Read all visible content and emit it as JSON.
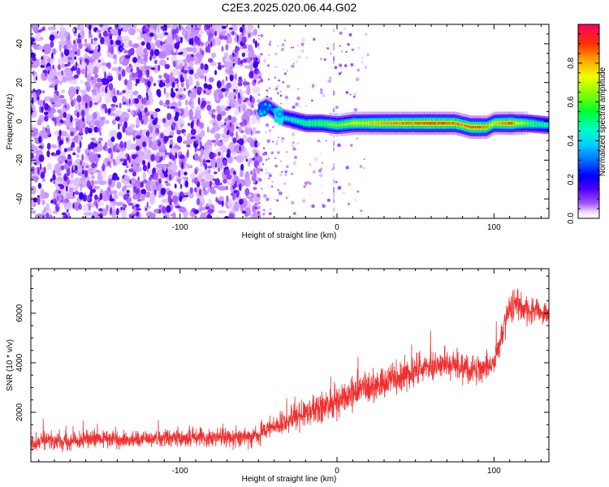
{
  "title": "C2E3.2025.020.06.44.G02",
  "chart_data": [
    {
      "type": "heatmap",
      "title": "C2E3.2025.020.06.44.G02",
      "xlabel": "Height of straight line (km)",
      "ylabel": "Frequency (Hz)",
      "xlim": [
        -195,
        135
      ],
      "ylim": [
        -50,
        50
      ],
      "xticks": [
        -100,
        0,
        100
      ],
      "xtick_labels": [
        "-100",
        "0",
        "100"
      ],
      "yticks": [
        -40,
        -20,
        0,
        20,
        40
      ],
      "ytick_labels": [
        "-40",
        "-20",
        "0",
        "20",
        "40"
      ],
      "colorbar": {
        "label": "Normalized spectral amplitude",
        "range": [
          0,
          1
        ],
        "ticks": [
          0.0,
          0.2,
          0.4,
          0.6,
          0.8
        ],
        "tick_labels": [
          "0.0",
          "0.2",
          "0.4",
          "0.6",
          "0.8"
        ],
        "colormap": [
          "#ffffff",
          "#e8d8ff",
          "#8030ff",
          "#2000ff",
          "#0080ff",
          "#00e8ff",
          "#00ff40",
          "#c0ff00",
          "#ff8000",
          "#ff0040"
        ]
      },
      "noise_region_x": [
        -195,
        -50
      ],
      "signal_track": {
        "x": [
          -50,
          -45,
          -40,
          -35,
          -30,
          -25,
          -20,
          -10,
          0,
          10,
          20,
          40,
          60,
          75,
          80,
          85,
          90,
          95,
          100,
          110,
          120,
          135
        ],
        "y": [
          6,
          8,
          5,
          2,
          1,
          0,
          -1,
          -1,
          -2,
          -1,
          -1,
          -1,
          -1,
          -1,
          -2,
          -3,
          -3,
          -3,
          -1,
          -1,
          -1,
          -2
        ],
        "peak_amplitude": [
          0.3,
          0.35,
          0.4,
          0.45,
          0.5,
          0.55,
          0.6,
          0.65,
          0.7,
          0.8,
          0.85,
          0.95,
          0.98,
          0.95,
          0.9,
          0.95,
          0.98,
          0.9,
          0.85,
          0.98,
          0.7,
          0.5
        ]
      },
      "grid": false
    },
    {
      "type": "line",
      "xlabel": "Height of straight line (km)",
      "ylabel": "SNR (10 * v/v)",
      "xlim": [
        -195,
        135
      ],
      "ylim": [
        0,
        7800
      ],
      "xticks": [
        -100,
        0,
        100
      ],
      "xtick_labels": [
        "-100",
        "0",
        "100"
      ],
      "yticks": [
        2000,
        4000,
        6000
      ],
      "ytick_labels": [
        "2000",
        "4000",
        "6000"
      ],
      "color": "#f03030",
      "series": [
        {
          "x": [
            -195,
            -180,
            -160,
            -140,
            -120,
            -100,
            -80,
            -60,
            -50,
            -40,
            -30,
            -20,
            -10,
            0,
            10,
            20,
            30,
            40,
            50,
            60,
            70,
            80,
            90,
            100,
            105,
            110,
            115,
            120,
            125,
            130,
            135
          ],
          "y": [
            800,
            850,
            900,
            900,
            950,
            950,
            1000,
            1000,
            1100,
            1400,
            1700,
            2000,
            2200,
            2400,
            2700,
            3000,
            3200,
            3400,
            3700,
            3900,
            4000,
            3800,
            3700,
            4000,
            5200,
            6200,
            6300,
            6200,
            6100,
            6000,
            5900
          ],
          "noise_amplitude": [
            600,
            600,
            650,
            650,
            650,
            700,
            700,
            700,
            750,
            800,
            900,
            1000,
            1100,
            1100,
            1100,
            1150,
            1150,
            1150,
            1150,
            1150,
            1100,
            1100,
            1050,
            1000,
            1100,
            1100,
            1100,
            1000,
            900,
            900,
            900
          ]
        }
      ],
      "grid": false
    }
  ]
}
